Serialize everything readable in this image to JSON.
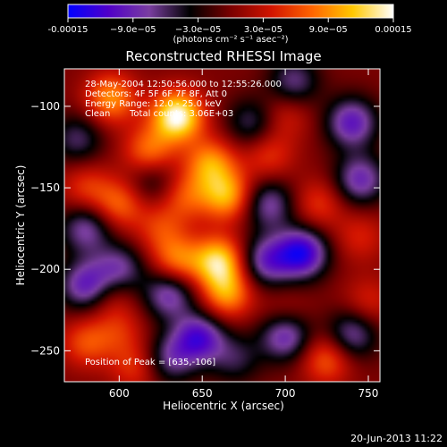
{
  "chart_data": {
    "type": "heatmap",
    "title": "Reconstructed RHESSI Image",
    "xlabel": "Heliocentric X (arcsec)",
    "ylabel": "Heliocentric Y (arcsec)",
    "xlim": [
      567,
      757
    ],
    "ylim": [
      -269,
      -77
    ],
    "x_ticks": [
      600,
      650,
      700,
      750
    ],
    "y_ticks": [
      -100,
      -150,
      -200,
      -250
    ],
    "colorbar": {
      "range": [
        -0.00015,
        0.00015
      ],
      "tick_labels": [
        "-0.00015",
        "−9.0e−05",
        "−3.0e−05",
        "3.0e−05",
        "9.0e−05",
        "0.00015"
      ],
      "unit_label": "(photons cm⁻² s⁻¹ asec⁻²)",
      "colormap": [
        "#0000ff",
        "#5000c8",
        "#7a3ea0",
        "#000000",
        "#7a0000",
        "#d21400",
        "#ff6400",
        "#ffc800",
        "#ffffff"
      ]
    },
    "annotations": [
      "28-May-2004 12:50:56.000 to 12:55:26.000",
      "Detectors: 4F 5F 6F 7F 8F, Att 0",
      "Energy Range: 12.0 - 25.0 keV",
      "Clean",
      "Total counts: 3.06E+03"
    ],
    "peak_label": "Position of Peak = [635,-106]",
    "peak": {
      "x": 635,
      "y": -106
    },
    "sources": [
      {
        "x": 635,
        "y": -106,
        "value": 0.00015
      },
      {
        "x": 595,
        "y": -95,
        "value": 9e-05
      },
      {
        "x": 618,
        "y": -128,
        "value": 8e-05
      },
      {
        "x": 655,
        "y": -135,
        "value": 9e-05
      },
      {
        "x": 665,
        "y": -155,
        "value": 0.0001
      },
      {
        "x": 640,
        "y": -155,
        "value": 6e-05
      },
      {
        "x": 600,
        "y": -160,
        "value": 7e-05
      },
      {
        "x": 580,
        "y": -150,
        "value": 5e-05
      },
      {
        "x": 625,
        "y": -175,
        "value": 5e-05
      },
      {
        "x": 660,
        "y": -195,
        "value": 0.00012
      },
      {
        "x": 635,
        "y": -195,
        "value": 8e-05
      },
      {
        "x": 665,
        "y": -215,
        "value": 9e-05
      },
      {
        "x": 690,
        "y": -130,
        "value": 5e-05
      },
      {
        "x": 700,
        "y": -105,
        "value": 4e-05
      },
      {
        "x": 720,
        "y": -160,
        "value": 5e-05
      },
      {
        "x": 745,
        "y": -180,
        "value": 4e-05
      },
      {
        "x": 595,
        "y": -215,
        "value": 4e-05
      },
      {
        "x": 580,
        "y": -245,
        "value": 6e-05
      },
      {
        "x": 610,
        "y": -260,
        "value": 5e-05
      },
      {
        "x": 600,
        "y": -238,
        "value": 4e-05
      },
      {
        "x": 725,
        "y": -255,
        "value": 7e-05
      },
      {
        "x": 750,
        "y": -220,
        "value": 4e-05
      },
      {
        "x": 700,
        "y": -230,
        "value": 4e-05
      },
      {
        "x": 688,
        "y": -195,
        "value": -9e-05
      },
      {
        "x": 710,
        "y": -190,
        "value": -0.00013
      },
      {
        "x": 745,
        "y": -145,
        "value": -9e-05
      },
      {
        "x": 740,
        "y": -110,
        "value": -0.0001
      },
      {
        "x": 705,
        "y": -85,
        "value": -7e-05
      },
      {
        "x": 580,
        "y": -175,
        "value": -8e-05
      },
      {
        "x": 580,
        "y": -210,
        "value": -0.0001
      },
      {
        "x": 630,
        "y": -215,
        "value": -9e-05
      },
      {
        "x": 600,
        "y": -200,
        "value": -8e-05
      },
      {
        "x": 648,
        "y": -242,
        "value": -0.00011
      },
      {
        "x": 700,
        "y": -240,
        "value": -0.00011
      },
      {
        "x": 740,
        "y": -240,
        "value": -8e-05
      },
      {
        "x": 630,
        "y": -255,
        "value": -7e-05
      },
      {
        "x": 690,
        "y": -160,
        "value": -8e-05
      },
      {
        "x": 680,
        "y": -110,
        "value": -6e-05
      },
      {
        "x": 620,
        "y": -145,
        "value": -5e-05
      },
      {
        "x": 575,
        "y": -120,
        "value": -6e-05
      },
      {
        "x": 670,
        "y": -255,
        "value": -5e-05
      }
    ]
  },
  "footer": {
    "date": "20-Jun-2013 11:22"
  }
}
